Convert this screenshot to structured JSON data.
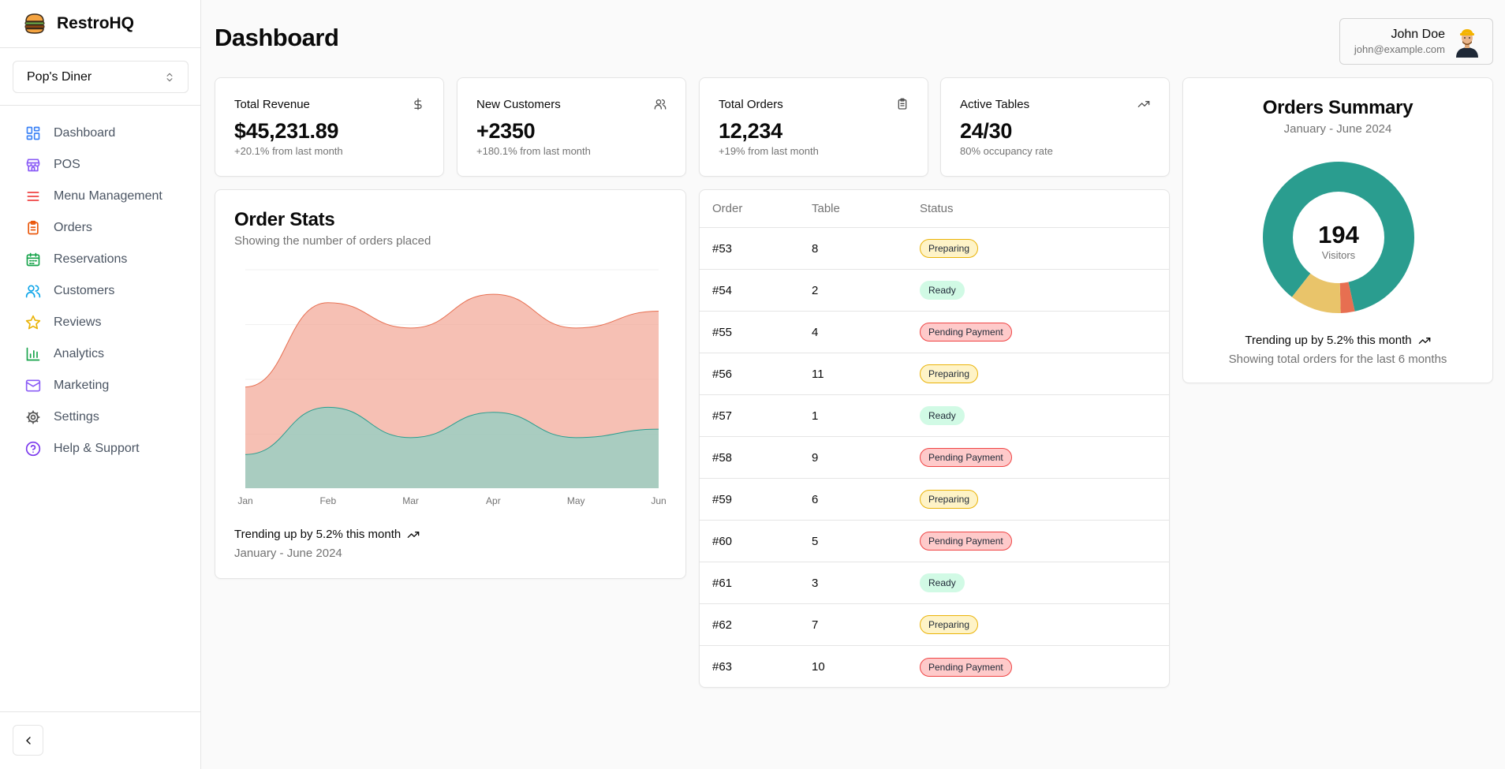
{
  "app": {
    "name": "RestroHQ"
  },
  "restaurant": {
    "selected": "Pop's Diner"
  },
  "sidebar": {
    "items": [
      {
        "label": "Dashboard",
        "icon": "layout-dashboard-icon",
        "color": "#3b82f6"
      },
      {
        "label": "POS",
        "icon": "store-icon",
        "color": "#8b5cf6"
      },
      {
        "label": "Menu Management",
        "icon": "menu-icon",
        "color": "#ef4444"
      },
      {
        "label": "Orders",
        "icon": "clipboard-list-icon",
        "color": "#ea580c"
      },
      {
        "label": "Reservations",
        "icon": "calendar-icon",
        "color": "#16a34a"
      },
      {
        "label": "Customers",
        "icon": "users-icon",
        "color": "#0ea5e9"
      },
      {
        "label": "Reviews",
        "icon": "star-icon",
        "color": "#eab308"
      },
      {
        "label": "Analytics",
        "icon": "bar-chart-icon",
        "color": "#16a34a"
      },
      {
        "label": "Marketing",
        "icon": "mail-icon",
        "color": "#8b5cf6"
      },
      {
        "label": "Settings",
        "icon": "gear-icon",
        "color": "#525252"
      },
      {
        "label": "Help & Support",
        "icon": "help-circle-icon",
        "color": "#7c3aed"
      }
    ]
  },
  "header": {
    "title": "Dashboard",
    "user": {
      "name": "John Doe",
      "email": "john@example.com"
    }
  },
  "stats": [
    {
      "title": "Total Revenue",
      "value": "$45,231.89",
      "sub": "+20.1% from last month",
      "icon": "dollar-icon"
    },
    {
      "title": "New Customers",
      "value": "+2350",
      "sub": "+180.1% from last month",
      "icon": "users-icon"
    },
    {
      "title": "Total Orders",
      "value": "12,234",
      "sub": "+19% from last month",
      "icon": "clipboard-icon"
    },
    {
      "title": "Active Tables",
      "value": "24/30",
      "sub": "80% occupancy rate",
      "icon": "trending-up-icon"
    }
  ],
  "order_stats": {
    "title": "Order Stats",
    "subtitle": "Showing the number of orders placed",
    "trend": "Trending up by 5.2% this month",
    "period": "January - June 2024"
  },
  "orders_table": {
    "headers": [
      "Order",
      "Table",
      "Status"
    ],
    "rows": [
      {
        "order": "#53",
        "table": "8",
        "status": "Preparing"
      },
      {
        "order": "#54",
        "table": "2",
        "status": "Ready"
      },
      {
        "order": "#55",
        "table": "4",
        "status": "Pending Payment"
      },
      {
        "order": "#56",
        "table": "11",
        "status": "Preparing"
      },
      {
        "order": "#57",
        "table": "1",
        "status": "Ready"
      },
      {
        "order": "#58",
        "table": "9",
        "status": "Pending Payment"
      },
      {
        "order": "#59",
        "table": "6",
        "status": "Preparing"
      },
      {
        "order": "#60",
        "table": "5",
        "status": "Pending Payment"
      },
      {
        "order": "#61",
        "table": "3",
        "status": "Ready"
      },
      {
        "order": "#62",
        "table": "7",
        "status": "Preparing"
      },
      {
        "order": "#63",
        "table": "10",
        "status": "Pending Payment"
      }
    ]
  },
  "summary": {
    "title": "Orders Summary",
    "subtitle": "January - June 2024",
    "center_value": "194",
    "center_label": "Visitors",
    "trend": "Trending up by 5.2% this month",
    "note": "Showing total orders for the last 6 months"
  },
  "chart_data": [
    {
      "type": "area",
      "categories": [
        "Jan",
        "Feb",
        "Mar",
        "Apr",
        "May",
        "Jun"
      ],
      "series": [
        {
          "values": [
            60,
            110,
            95,
            115,
            95,
            105
          ],
          "color": "#f2a594"
        },
        {
          "values": [
            20,
            48,
            30,
            45,
            30,
            35
          ],
          "color": "#8fd0c4"
        }
      ],
      "ylim": [
        0,
        130
      ],
      "grid": true
    },
    {
      "type": "pie",
      "slices": [
        {
          "value": 86,
          "color": "#2a9d8f"
        },
        {
          "value": 3,
          "color": "#e76f51"
        },
        {
          "value": 11,
          "color": "#e9c46a"
        }
      ]
    }
  ]
}
